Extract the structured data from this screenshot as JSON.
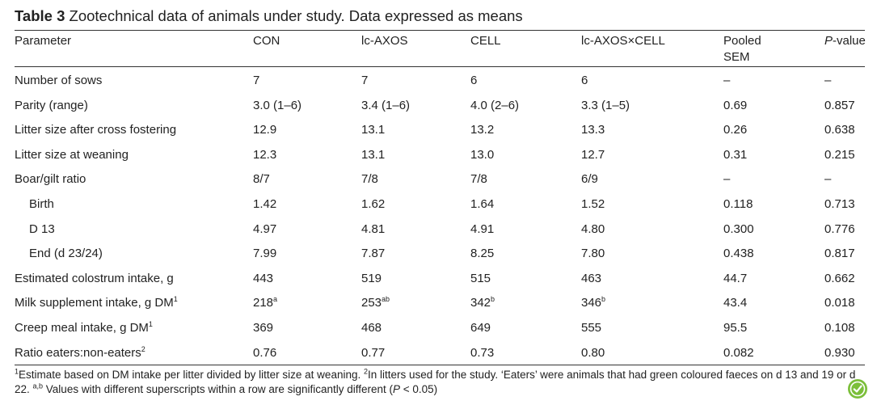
{
  "table": {
    "label": "Table 3",
    "caption": "Zootechnical data of animals under study. Data expressed as means",
    "headers": {
      "parameter": "Parameter",
      "con": "CON",
      "axos": "lc-AXOS",
      "cell": "CELL",
      "axoscell": "lc-AXOS×CELL",
      "sem_line1": "Pooled",
      "sem_line2": "SEM",
      "p_letter": "P",
      "p_rest": "-value"
    },
    "rows": [
      {
        "param": "Number of sows",
        "con": "7",
        "axos": "7",
        "cell": "6",
        "axoscell": "6",
        "sem": "–",
        "p": "–"
      },
      {
        "param": "Parity (range)",
        "con": "3.0 (1–6)",
        "axos": "3.4 (1–6)",
        "cell": "4.0 (2–6)",
        "axoscell": "3.3 (1–5)",
        "sem": "0.69",
        "p": "0.857"
      },
      {
        "param": "Litter size after cross fostering",
        "con": "12.9",
        "axos": "13.1",
        "cell": "13.2",
        "axoscell": "13.3",
        "sem": "0.26",
        "p": "0.638"
      },
      {
        "param": "Litter size at weaning",
        "con": "12.3",
        "axos": "13.1",
        "cell": "13.0",
        "axoscell": "12.7",
        "sem": "0.31",
        "p": "0.215"
      },
      {
        "param": "Boar/gilt ratio",
        "con": "8/7",
        "axos": "7/8",
        "cell": "7/8",
        "axoscell": "6/9",
        "sem": "–",
        "p": "–"
      },
      {
        "param": "Birth",
        "con": "1.42",
        "axos": "1.62",
        "cell": "1.64",
        "axoscell": "1.52",
        "sem": "0.118",
        "p": "0.713"
      },
      {
        "param": "D 13",
        "con": "4.97",
        "axos": "4.81",
        "cell": "4.91",
        "axoscell": "4.80",
        "sem": "0.300",
        "p": "0.776"
      },
      {
        "param": "End (d 23/24)",
        "con": "7.99",
        "axos": "7.87",
        "cell": "8.25",
        "axoscell": "7.80",
        "sem": "0.438",
        "p": "0.817"
      },
      {
        "param": "Estimated colostrum intake, g",
        "con": "443",
        "axos": "519",
        "cell": "515",
        "axoscell": "463",
        "sem": "44.7",
        "p": "0.662"
      },
      {
        "param": "Milk supplement intake, g DM",
        "param_sup": "1",
        "con": "218",
        "con_sup": "a",
        "axos": "253",
        "axos_sup": "ab",
        "cell": "342",
        "cell_sup": "b",
        "axoscell": "346",
        "axoscell_sup": "b",
        "sem": "43.4",
        "p": "0.018"
      },
      {
        "param": "Creep meal intake, g DM",
        "param_sup": "1",
        "con": "369",
        "axos": "468",
        "cell": "649",
        "axoscell": "555",
        "sem": "95.5",
        "p": "0.108"
      },
      {
        "param": "Ratio eaters:non-eaters",
        "param_sup": "2",
        "con": "0.76",
        "axos": "0.77",
        "cell": "0.73",
        "axoscell": "0.80",
        "sem": "0.082",
        "p": "0.930"
      }
    ],
    "footnote": {
      "sup1": "1",
      "part1": "Estimate based on DM intake per litter divided by litter size at weaning. ",
      "sup2": "2",
      "part2": "In litters used for the study. ‘Eaters’ were animals that had green coloured faeces on d 13 and 19 or d 22. ",
      "sup3": "a,b",
      "part3": " Values with different superscripts within a row are significantly different (",
      "p_letter": "P",
      "part4": " < 0.05)"
    }
  },
  "colors": {
    "text": "#222222",
    "rule": "#333333",
    "badge": "#7bbf3a"
  }
}
